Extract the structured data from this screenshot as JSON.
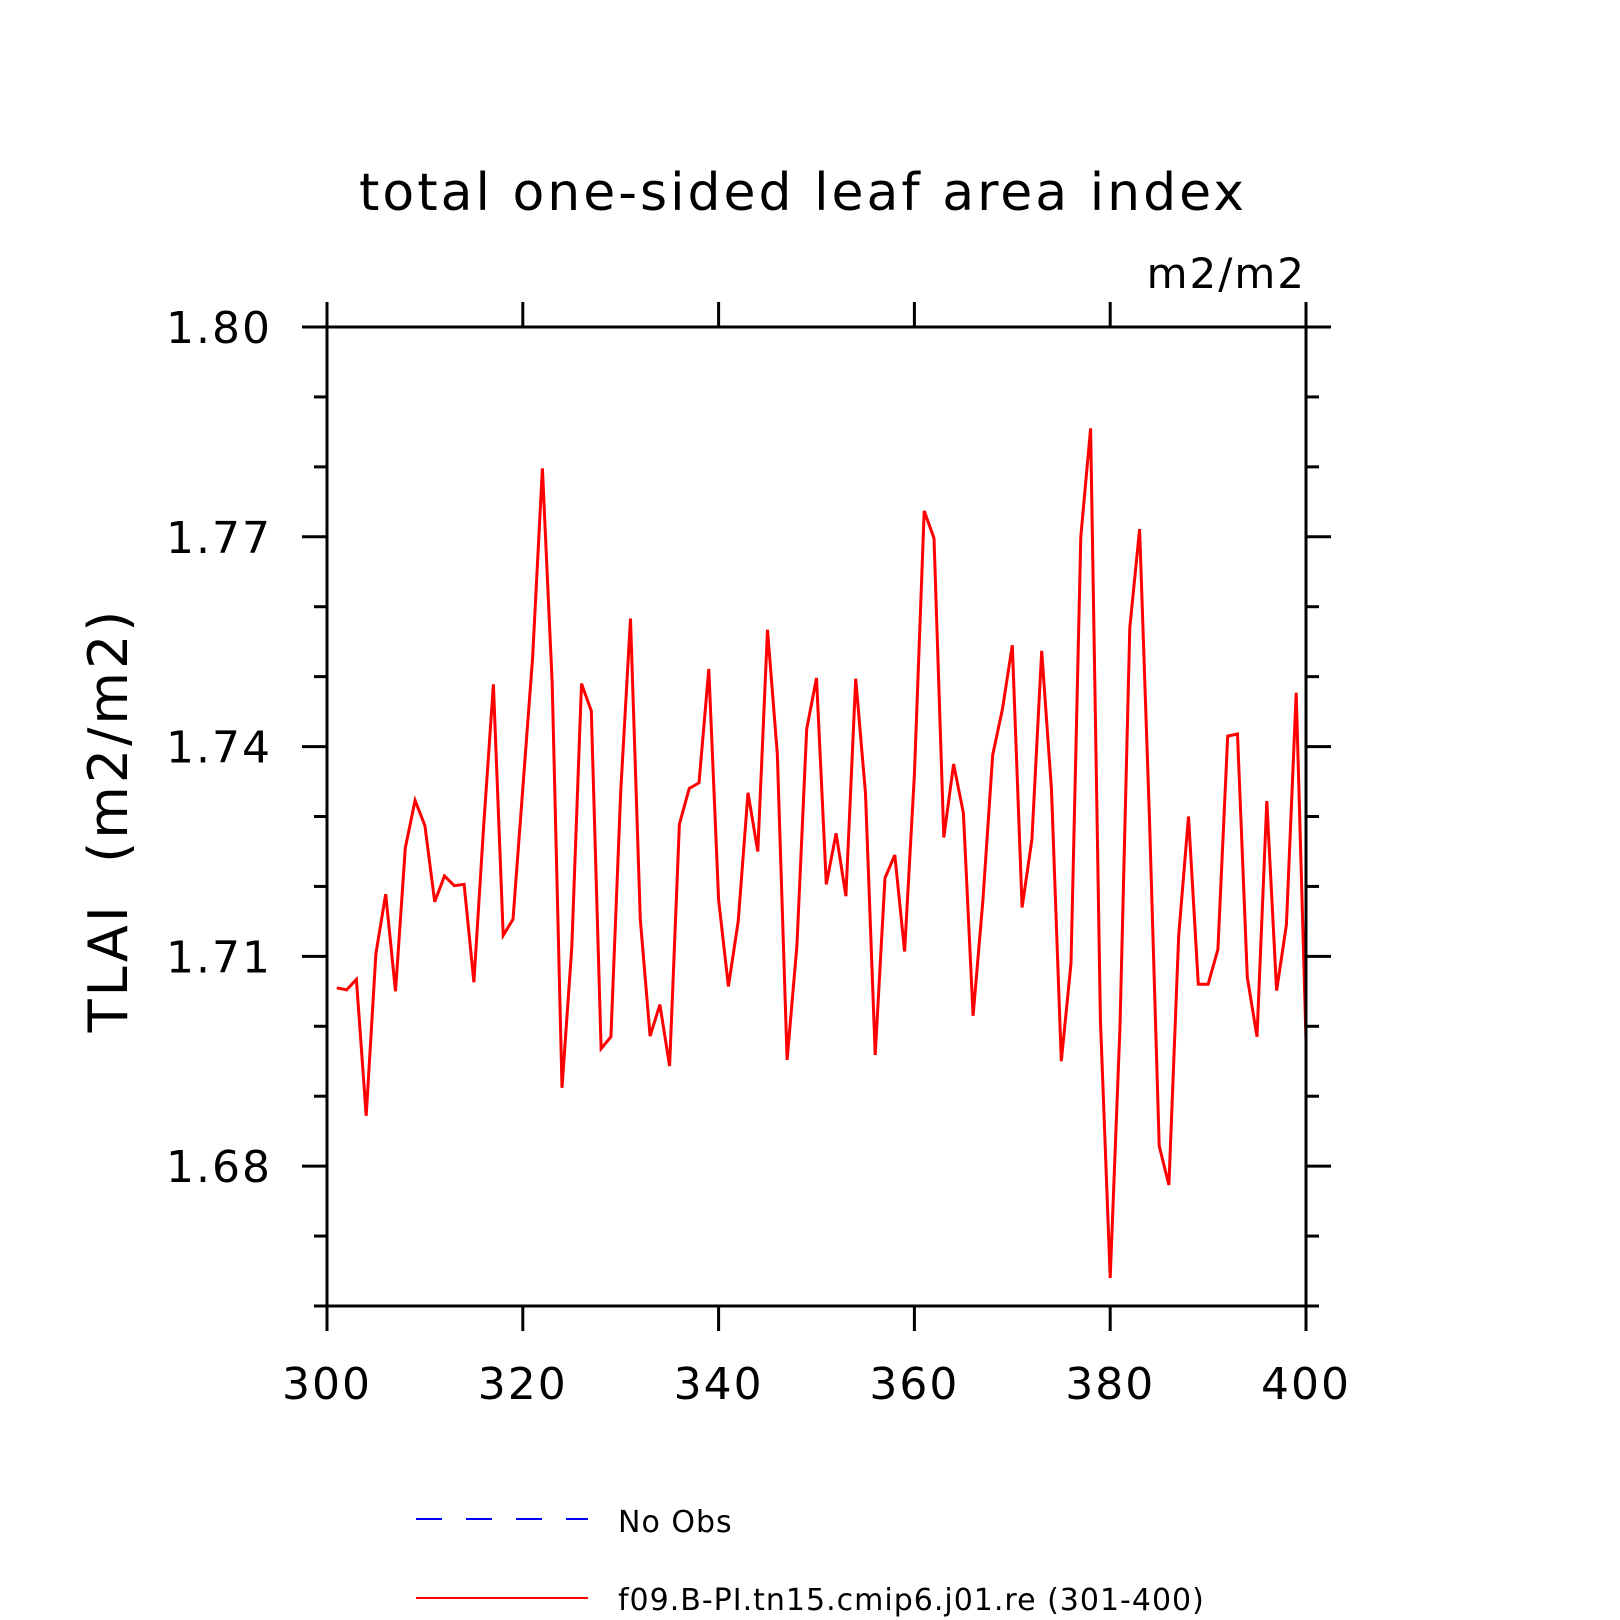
{
  "chart_data": {
    "type": "line",
    "title": "total one-sided leaf area index",
    "units_label": "m2/m2",
    "ylabel": "TLAI  (m2/m2)",
    "xlabel": "",
    "xlim": [
      300,
      400
    ],
    "ylim": [
      1.66,
      1.8
    ],
    "xticks": [
      300,
      320,
      340,
      360,
      380,
      400
    ],
    "xtick_labels": [
      "300",
      "320",
      "340",
      "360",
      "380",
      "400"
    ],
    "yticks": [
      1.68,
      1.71,
      1.74,
      1.77,
      1.8
    ],
    "ytick_labels": [
      "1.68",
      "1.71",
      "1.74",
      "1.77",
      "1.80"
    ],
    "yminor_step": 0.01,
    "grid": false,
    "legend": {
      "placement": "bottom",
      "entries": [
        {
          "label": "No Obs",
          "color": "#0000ff",
          "style": "dashed"
        },
        {
          "label": "f09.B-PI.tn15.cmip6.j01.re (301-400)",
          "color": "#ff0000",
          "style": "solid"
        }
      ]
    },
    "series": [
      {
        "name": "f09.B-PI.tn15.cmip6.j01.re (301-400)",
        "color": "#ff0000",
        "x": [
          301,
          302,
          303,
          304,
          305,
          306,
          307,
          308,
          309,
          310,
          311,
          312,
          313,
          314,
          315,
          316,
          317,
          318,
          319,
          320,
          321,
          322,
          323,
          324,
          325,
          326,
          327,
          328,
          329,
          330,
          331,
          332,
          333,
          334,
          335,
          336,
          337,
          338,
          339,
          340,
          341,
          342,
          343,
          344,
          345,
          346,
          347,
          348,
          349,
          350,
          351,
          352,
          353,
          354,
          355,
          356,
          357,
          358,
          359,
          360,
          361,
          362,
          363,
          364,
          365,
          366,
          367,
          368,
          369,
          370,
          371,
          372,
          373,
          374,
          375,
          376,
          377,
          378,
          379,
          380,
          381,
          382,
          383,
          384,
          385,
          386,
          387,
          388,
          389,
          390,
          391,
          392,
          393,
          394,
          395,
          396,
          397,
          398,
          399,
          400
        ],
        "y": [
          1.7055,
          1.7052,
          1.7067,
          1.6872,
          1.7104,
          1.7189,
          1.705,
          1.7255,
          1.7323,
          1.7287,
          1.7178,
          1.7215,
          1.7201,
          1.7203,
          1.7063,
          1.7285,
          1.7489,
          1.713,
          1.7153,
          1.734,
          1.7527,
          1.7798,
          1.749,
          1.6912,
          1.7113,
          1.749,
          1.7451,
          1.6968,
          1.6985,
          1.7335,
          1.7583,
          1.7153,
          1.6986,
          1.7031,
          1.6943,
          1.7289,
          1.734,
          1.7348,
          1.7511,
          1.7181,
          1.7057,
          1.715,
          1.7334,
          1.725,
          1.7567,
          1.739,
          1.6952,
          1.7115,
          1.7425,
          1.7498,
          1.7203,
          1.7276,
          1.7186,
          1.7497,
          1.7333,
          1.6959,
          1.7212,
          1.7245,
          1.7107,
          1.736,
          1.7737,
          1.7698,
          1.727,
          1.7375,
          1.7305,
          1.7015,
          1.718,
          1.7388,
          1.7454,
          1.7545,
          1.717,
          1.7267,
          1.7537,
          1.7338,
          1.695,
          1.709,
          1.77,
          1.7855,
          1.701,
          1.664,
          1.7,
          1.757,
          1.7711,
          1.73,
          1.6829,
          1.6773,
          1.713,
          1.73,
          1.706,
          1.706,
          1.711,
          1.7415,
          1.7418,
          1.707,
          1.6985,
          1.7322,
          1.7051,
          1.7145,
          1.7477,
          1.698
        ]
      }
    ]
  }
}
